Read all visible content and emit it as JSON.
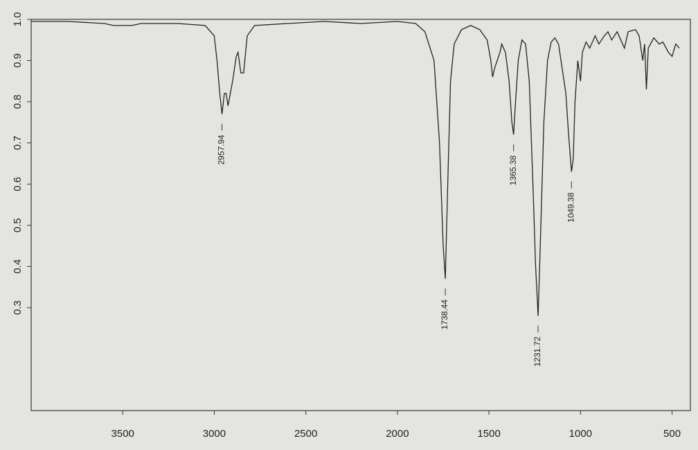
{
  "chart_data": {
    "type": "line",
    "x": [
      4000,
      3800,
      3600,
      3550,
      3450,
      3400,
      3200,
      3050,
      3000,
      2985,
      2970,
      2957.94,
      2945,
      2935,
      2925,
      2900,
      2880,
      2870,
      2855,
      2840,
      2820,
      2780,
      2600,
      2400,
      2200,
      2000,
      1900,
      1850,
      1800,
      1770,
      1750,
      1738.44,
      1725,
      1710,
      1690,
      1650,
      1600,
      1550,
      1510,
      1490,
      1480,
      1470,
      1440,
      1430,
      1410,
      1390,
      1375,
      1365.38,
      1355,
      1340,
      1320,
      1300,
      1280,
      1260,
      1245,
      1231.72,
      1220,
      1200,
      1180,
      1160,
      1140,
      1120,
      1100,
      1080,
      1065,
      1049.38,
      1040,
      1030,
      1015,
      1000,
      990,
      970,
      950,
      920,
      900,
      870,
      850,
      830,
      800,
      780,
      760,
      740,
      700,
      680,
      660,
      650,
      640,
      630,
      600,
      570,
      550,
      520,
      500,
      480,
      460
    ],
    "series": [
      {
        "color": "#222222",
        "values": [
          0.995,
          0.995,
          0.99,
          0.985,
          0.985,
          0.99,
          0.99,
          0.985,
          0.96,
          0.9,
          0.82,
          0.77,
          0.82,
          0.82,
          0.79,
          0.85,
          0.91,
          0.92,
          0.87,
          0.87,
          0.96,
          0.985,
          0.99,
          0.995,
          0.99,
          0.995,
          0.99,
          0.97,
          0.9,
          0.7,
          0.45,
          0.37,
          0.6,
          0.85,
          0.94,
          0.975,
          0.985,
          0.975,
          0.95,
          0.9,
          0.86,
          0.88,
          0.92,
          0.94,
          0.92,
          0.85,
          0.75,
          0.72,
          0.8,
          0.9,
          0.95,
          0.94,
          0.85,
          0.6,
          0.4,
          0.28,
          0.45,
          0.75,
          0.9,
          0.945,
          0.955,
          0.94,
          0.88,
          0.82,
          0.72,
          0.63,
          0.66,
          0.8,
          0.9,
          0.85,
          0.92,
          0.945,
          0.93,
          0.96,
          0.94,
          0.96,
          0.97,
          0.95,
          0.97,
          0.95,
          0.93,
          0.97,
          0.975,
          0.96,
          0.9,
          0.94,
          0.83,
          0.93,
          0.955,
          0.94,
          0.945,
          0.92,
          0.91,
          0.94,
          0.93
        ]
      }
    ],
    "annotations": [
      {
        "x": 2957.94,
        "y": 0.77
      },
      {
        "x": 1738.44,
        "y": 0.37
      },
      {
        "x": 1365.38,
        "y": 0.72
      },
      {
        "x": 1231.72,
        "y": 0.28
      },
      {
        "x": 1049.38,
        "y": 0.63
      }
    ],
    "xlim": [
      4000,
      400
    ],
    "xticks": [
      3500,
      3000,
      2500,
      2000,
      1500,
      1000,
      500
    ],
    "ylim": [
      0.05,
      1.0
    ],
    "yticks": [
      {
        "value": 1.0,
        "label": "1.0"
      },
      0.9,
      0.8,
      0.7,
      0.6,
      0.5,
      0.4,
      0.3
    ]
  }
}
